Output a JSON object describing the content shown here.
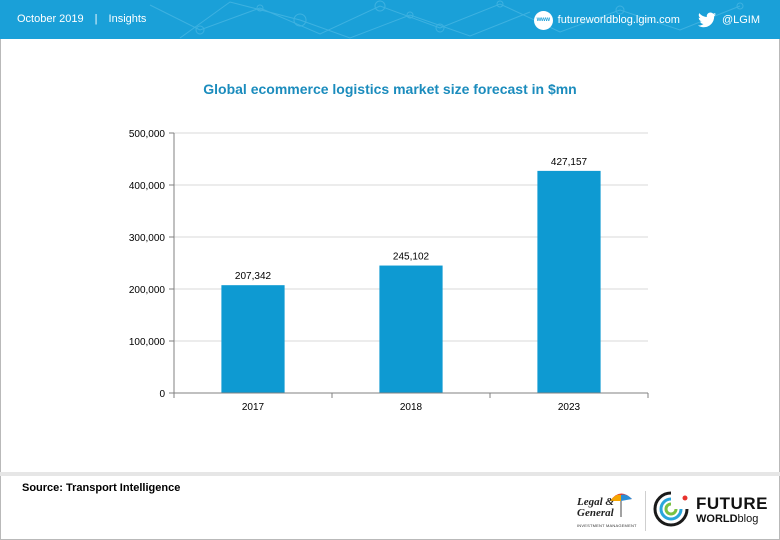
{
  "header": {
    "date": "October 2019",
    "separator": "|",
    "section": "Insights",
    "website_icon": "www",
    "website": "futureworldblog.lgim.com",
    "twitter_handle": "@LGIM",
    "background_color": "#1aa0d8"
  },
  "chart_data": {
    "type": "bar",
    "title": "Global ecommerce logistics market size forecast in $mn",
    "xlabel": "",
    "ylabel": "",
    "categories": [
      "2017",
      "2018",
      "2023"
    ],
    "values": [
      207342,
      245102,
      427157
    ],
    "data_labels": [
      "207,342",
      "245,102",
      "427,157"
    ],
    "ylim": [
      0,
      500000
    ],
    "yticks": [
      0,
      100000,
      200000,
      300000,
      400000,
      500000
    ],
    "ytick_labels": [
      "0",
      "100,000",
      "200,000",
      "300,000",
      "400,000",
      "500,000"
    ],
    "grid": true,
    "legend": false,
    "bar_color": "#0e9ad2",
    "title_color": "#1b8cbd"
  },
  "footer": {
    "source": "Source:  Transport Intelligence",
    "lg_logo_line1": "Legal &",
    "lg_logo_line2": "General",
    "lg_logo_sub": "INVESTMENT MANAGEMENT",
    "fw_logo_line1": "FUTURE",
    "fw_logo_world": "WORLD",
    "fw_logo_blog": "blog"
  }
}
